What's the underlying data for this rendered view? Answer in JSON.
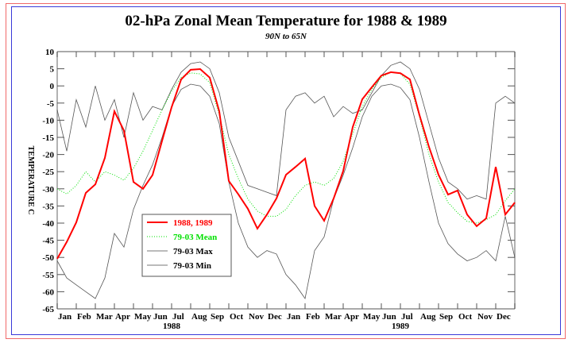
{
  "chart_data": {
    "type": "line",
    "title": "02-hPa Zonal Mean Temperature for 1988 & 1989",
    "subtitle": "90N to 65N",
    "xlabel": "",
    "ylabel": "TEMPERATURE C",
    "ylim": [
      -65,
      10
    ],
    "yticks": [
      10,
      5,
      0,
      -5,
      -10,
      -15,
      -20,
      -25,
      -30,
      -35,
      -40,
      -45,
      -50,
      -55,
      -60,
      -65
    ],
    "xlim_months": [
      0,
      24
    ],
    "xtick_labels": [
      "Jan",
      "Feb",
      "Mar",
      "Apr",
      "May",
      "Jun",
      "Jul",
      "Aug",
      "Sep",
      "Oct",
      "Nov",
      "Dec",
      "Jan",
      "Feb",
      "Mar",
      "Apr",
      "May",
      "Jun",
      "Jul",
      "Aug",
      "Sep",
      "Oct",
      "Nov",
      "Dec"
    ],
    "year_labels": [
      {
        "label": "1988",
        "center_month": 6
      },
      {
        "label": "1989",
        "center_month": 18
      }
    ],
    "x_months": [
      0,
      0.5,
      1,
      1.5,
      2,
      2.5,
      3,
      3.5,
      4,
      4.5,
      5,
      5.5,
      6,
      6.5,
      7,
      7.5,
      8,
      8.5,
      9,
      9.5,
      10,
      10.5,
      11,
      11.5,
      12,
      12.5,
      13,
      13.5,
      14,
      14.5,
      15,
      15.5,
      16,
      16.5,
      17,
      17.5,
      18,
      18.5,
      19,
      19.5,
      20,
      20.5,
      21,
      21.5,
      22,
      22.5,
      23,
      23.5,
      24
    ],
    "series": [
      {
        "name": "1988, 1989",
        "color": "#ff0000",
        "style": "solid-thick",
        "values": [
          -50.4,
          -45.5,
          -39.8,
          -31.2,
          -28.7,
          -21,
          -7.4,
          -13,
          -28,
          -30,
          -26,
          -16,
          -6.2,
          1.9,
          4.7,
          4.9,
          2.4,
          -7.4,
          -27.7,
          -31.6,
          -35.8,
          -41.6,
          -37.5,
          -32.8,
          -25.9,
          -23.6,
          -21.2,
          -35,
          -39.3,
          -32.8,
          -24.8,
          -12,
          -3.9,
          -0.4,
          3,
          4,
          3.7,
          1.9,
          -8.5,
          -17.8,
          -25.9,
          -31.7,
          -30.5,
          -37.5,
          -40.9,
          -38.6,
          -23.6,
          -37.5,
          -34
        ]
      },
      {
        "name": "79-03 Mean",
        "color": "#00e000",
        "style": "dotted",
        "values": [
          -30,
          -31.5,
          -29,
          -25,
          -28,
          -25,
          -26,
          -27.5,
          -24,
          -19,
          -13,
          -7,
          -1.5,
          2.5,
          3.8,
          3.5,
          1,
          -8.5,
          -20,
          -27,
          -33,
          -36.5,
          -38,
          -38,
          -36,
          -32,
          -29,
          -28,
          -29,
          -27,
          -22,
          -14,
          -6,
          -1,
          2.5,
          4,
          3.6,
          0.5,
          -9,
          -20,
          -28,
          -34,
          -37,
          -39.5,
          -40,
          -39,
          -37.5,
          -33.5,
          -30
        ]
      },
      {
        "name": "79-03 Max",
        "color": "#555555",
        "style": "solid-thin",
        "values": [
          -7,
          -19,
          -4,
          -12,
          0,
          -10,
          -4,
          -15,
          -2,
          -10,
          -6,
          -7,
          -1,
          4,
          6.5,
          7,
          5,
          -2,
          -15,
          -22,
          -29,
          -30,
          -31,
          -32,
          -7,
          -3,
          -2,
          -5,
          -3,
          -9,
          -6,
          -8,
          -7,
          -2,
          3,
          6,
          7,
          5,
          -1,
          -11,
          -21,
          -28,
          -30,
          -33,
          -32,
          -33,
          -5,
          -3,
          -5
        ]
      },
      {
        "name": "79-03 Min",
        "color": "#555555",
        "style": "solid-thin",
        "values": [
          -51,
          -56,
          -58,
          -60,
          -62,
          -56,
          -43,
          -47,
          -36,
          -29,
          -23,
          -15,
          -6,
          -1,
          0.5,
          0,
          -3,
          -11,
          -28,
          -40,
          -47,
          -50,
          -48,
          -49,
          -55,
          -58,
          -62,
          -48,
          -44,
          -33,
          -26,
          -18,
          -9,
          -3,
          0,
          0.5,
          -0.5,
          -4,
          -15,
          -28,
          -40,
          -46,
          -49,
          -51,
          -50,
          -48,
          -51,
          -38,
          -50
        ]
      }
    ],
    "legend": {
      "position": "lower-left",
      "entries": [
        {
          "label": "1988, 1989",
          "color": "#ff0000",
          "style": "solid-thick"
        },
        {
          "label": "79-03 Mean",
          "color": "#00e000",
          "style": "dotted"
        },
        {
          "label": "79-03 Max",
          "color": "#555555",
          "style": "solid-thin"
        },
        {
          "label": "79-03 Min",
          "color": "#555555",
          "style": "solid-thin"
        }
      ]
    },
    "grid": false
  }
}
